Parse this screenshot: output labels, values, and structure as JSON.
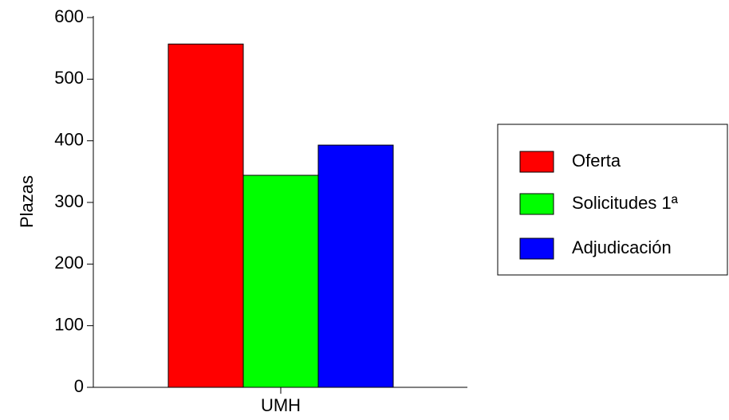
{
  "chart_data": {
    "type": "bar",
    "title": "",
    "xlabel": "",
    "ylabel": "Plazas",
    "ylim": [
      0,
      600
    ],
    "yticks": [
      0,
      100,
      200,
      300,
      400,
      500,
      600
    ],
    "categories": [
      "UMH"
    ],
    "series": [
      {
        "name": "Oferta",
        "values": [
          557
        ],
        "color": "#ff0000"
      },
      {
        "name": "Solicitudes 1ª",
        "values": [
          344
        ],
        "color": "#00ff00"
      },
      {
        "name": "Adjudicación",
        "values": [
          393
        ],
        "color": "#0000ff"
      }
    ],
    "grid": false,
    "legend_position": "right"
  }
}
